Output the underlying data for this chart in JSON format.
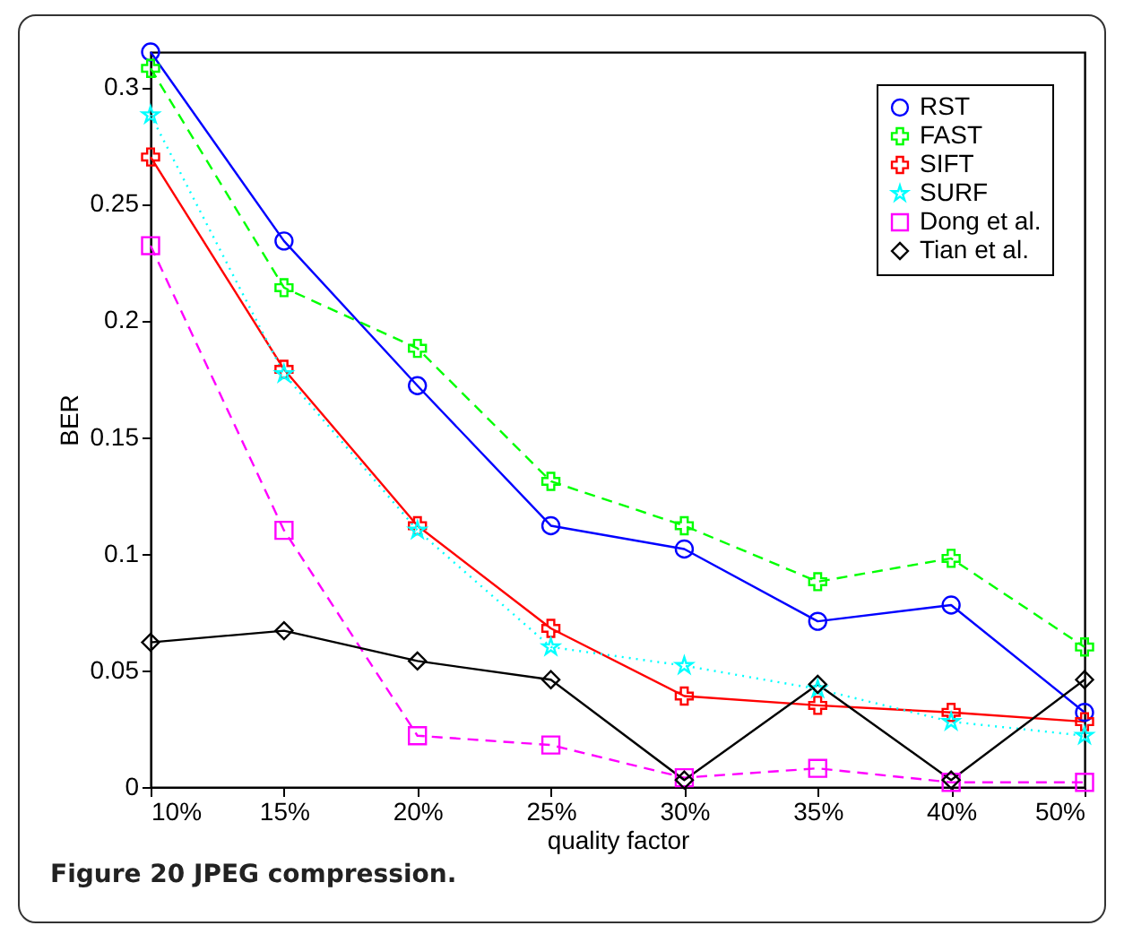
{
  "chart_data": {
    "type": "line",
    "xlabel": "quality factor",
    "ylabel": "BER",
    "annotations": [
      "Figure 20 JPEG compression."
    ],
    "categories": [
      "10%",
      "15%",
      "20%",
      "25%",
      "30%",
      "35%",
      "40%",
      "50%"
    ],
    "ylim": [
      0,
      0.315
    ],
    "yticks": [
      0,
      0.05,
      0.1,
      0.15,
      0.2,
      0.25,
      0.3
    ],
    "grid": false,
    "legend": "top right",
    "series": [
      {
        "name": "RST",
        "color": "#0000ff",
        "marker": "circle",
        "line_style": "solid",
        "values": [
          0.315,
          0.234,
          0.172,
          0.112,
          0.102,
          0.071,
          0.078,
          0.032
        ]
      },
      {
        "name": "FAST",
        "color": "#00ff00",
        "marker": "cross",
        "line_style": "dashed",
        "values": [
          0.308,
          0.214,
          0.188,
          0.131,
          0.112,
          0.088,
          0.098,
          0.06
        ]
      },
      {
        "name": "SIFT",
        "color": "#ff0000",
        "marker": "cross",
        "line_style": "solid",
        "values": [
          0.27,
          0.179,
          0.112,
          0.068,
          0.039,
          0.035,
          0.032,
          0.028
        ]
      },
      {
        "name": "SURF",
        "color": "#00ffff",
        "marker": "star",
        "line_style": "dotted",
        "values": [
          0.288,
          0.177,
          0.11,
          0.06,
          0.052,
          0.042,
          0.028,
          0.022
        ]
      },
      {
        "name": "Dong et al.",
        "color": "#ff00ff",
        "marker": "square",
        "line_style": "dashed",
        "values": [
          0.232,
          0.11,
          0.022,
          0.018,
          0.004,
          0.008,
          0.002,
          0.002
        ]
      },
      {
        "name": "Tian et al.",
        "color": "#000000",
        "marker": "diamond",
        "line_style": "solid",
        "values": [
          0.062,
          0.067,
          0.054,
          0.046,
          0.003,
          0.044,
          0.003,
          0.046
        ]
      }
    ]
  }
}
